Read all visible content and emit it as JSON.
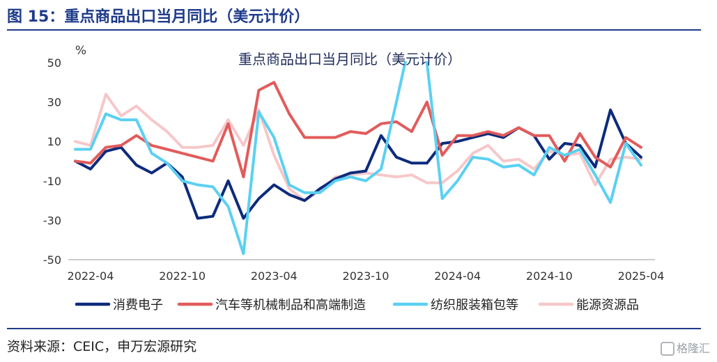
{
  "figure_title": "图 15：重点商品出口当月同比（美元计价）",
  "source_text": "资料来源：CEIC，申万宏源研究",
  "watermark": "格隆汇",
  "chart_data": {
    "type": "line",
    "title": "重点商品出口当月同比（美元计价）",
    "ylabel": "%",
    "ylim": [
      -50,
      50
    ],
    "yticks": [
      "50",
      "30",
      "10",
      "-10",
      "-30",
      "-50"
    ],
    "xtick_labels": [
      "2022-04",
      "2022-10",
      "2023-04",
      "2023-10",
      "2024-04",
      "2024-10",
      "2025-04"
    ],
    "x": [
      "2022-03",
      "2022-04",
      "2022-05",
      "2022-06",
      "2022-07",
      "2022-08",
      "2022-09",
      "2022-10",
      "2022-11",
      "2022-12",
      "2023-01",
      "2023-02",
      "2023-03",
      "2023-04",
      "2023-05",
      "2023-06",
      "2023-07",
      "2023-08",
      "2023-09",
      "2023-10",
      "2023-11",
      "2023-12",
      "2024-01",
      "2024-02",
      "2024-03",
      "2024-04",
      "2024-05",
      "2024-06",
      "2024-07",
      "2024-08",
      "2024-09",
      "2024-10",
      "2024-11",
      "2024-12",
      "2025-01",
      "2025-02",
      "2025-03",
      "2025-04"
    ],
    "series": [
      {
        "name": "消费电子",
        "color": "#0d2b7c",
        "values": [
          0,
          -4,
          5,
          7,
          -2,
          -6,
          -1,
          -8,
          -29,
          -28,
          -10,
          -29,
          -19,
          -12,
          -17,
          -20,
          -14,
          -9,
          -6,
          -5,
          13,
          2,
          -1,
          -1,
          9,
          10,
          12,
          14,
          12,
          17,
          13,
          1,
          9,
          8,
          -3,
          26,
          9,
          2
        ]
      },
      {
        "name": "汽车等机械制品和高端制造",
        "color": "#e25b5b",
        "values": [
          0,
          -1,
          7,
          8,
          13,
          8,
          6,
          4,
          2,
          0,
          19,
          -8,
          36,
          40,
          24,
          12,
          12,
          12,
          15,
          14,
          19,
          20,
          15,
          30,
          3,
          13,
          13,
          15,
          13,
          17,
          13,
          13,
          0,
          14,
          2,
          -3,
          12,
          7
        ]
      },
      {
        "name": "纺织服装箱包等",
        "color": "#5bd0f2",
        "values": [
          6,
          6,
          24,
          21,
          21,
          4,
          -1,
          -10,
          -12,
          -13,
          -23,
          -47,
          25,
          12,
          -12,
          -16,
          -16,
          -10,
          -8,
          -10,
          -4,
          30,
          65,
          50,
          -19,
          -10,
          2,
          1,
          -3,
          -2,
          -7,
          7,
          3,
          6,
          -7,
          -21,
          9,
          -2
        ]
      },
      {
        "name": "能源资源品",
        "color": "#f6c7c9",
        "values": [
          10,
          8,
          34,
          23,
          28,
          21,
          15,
          7,
          7,
          8,
          21,
          8,
          26,
          3,
          -14,
          -20,
          -15,
          -8,
          -7,
          -6,
          -7,
          -8,
          -7,
          -11,
          -11,
          -5,
          4,
          8,
          0,
          1,
          -4,
          5,
          3,
          4,
          -12,
          1,
          2,
          1
        ]
      }
    ]
  }
}
